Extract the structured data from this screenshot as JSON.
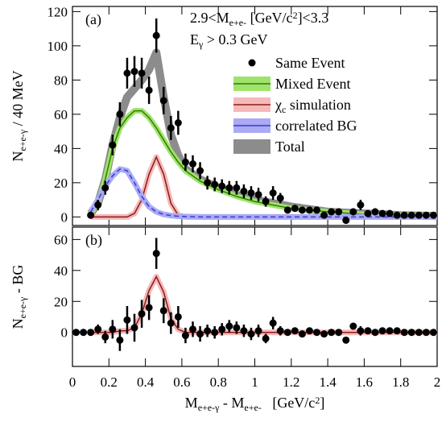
{
  "chart_data": [
    {
      "type": "errorbar",
      "panel_label": "(a)",
      "annotations": [
        [
          {
            "text": "2.9<M"
          },
          {
            "text": "e+e-",
            "shift": "sub"
          },
          {
            "text": " [GeV/c"
          },
          {
            "text": "2",
            "shift": "super"
          },
          {
            "text": "]<3.3"
          }
        ],
        [
          {
            "text": "E"
          },
          {
            "text": "γ",
            "shift": "sub"
          },
          {
            "text": " > 0.3 GeV"
          }
        ]
      ],
      "y_label": [
        {
          "text": "N"
        },
        {
          "text": "e+e-γ",
          "shift": "sub"
        },
        {
          "text": " / 40 MeV"
        }
      ],
      "xlim": [
        0,
        2
      ],
      "xticks": [
        0,
        0.2,
        0.4,
        0.6,
        0.8,
        1,
        1.2,
        1.4,
        1.6,
        1.8,
        2
      ],
      "ylim": [
        -5,
        123
      ],
      "yticks": [
        0,
        20,
        40,
        60,
        80,
        100,
        120
      ],
      "series": [
        {
          "name": "Total",
          "kind": "band",
          "color": "#8c8c8c",
          "x": [
            0.1,
            0.14,
            0.18,
            0.22,
            0.26,
            0.3,
            0.34,
            0.38,
            0.42,
            0.46,
            0.5,
            0.54,
            0.58,
            0.62,
            0.7,
            0.8,
            0.9,
            1.0,
            1.2,
            1.4,
            1.6,
            1.8,
            2.0
          ],
          "values": [
            2,
            8,
            22,
            42,
            58,
            70,
            75,
            80,
            86,
            96,
            70,
            48,
            36,
            28,
            22,
            17,
            13,
            10,
            6,
            3,
            2,
            1,
            0.5
          ]
        },
        {
          "name": "Mixed Event",
          "kind": "band",
          "color": "#9fe36c",
          "line_color": "#2f7d00",
          "x": [
            0.1,
            0.14,
            0.18,
            0.22,
            0.26,
            0.3,
            0.34,
            0.38,
            0.42,
            0.46,
            0.5,
            0.54,
            0.58,
            0.62,
            0.7,
            0.8,
            0.9,
            1.0,
            1.2,
            1.4,
            1.6,
            1.8,
            2.0
          ],
          "values": [
            2,
            8,
            22,
            40,
            52,
            58,
            62,
            62,
            58,
            52,
            45,
            38,
            32,
            27,
            21,
            16,
            12,
            9,
            5,
            3,
            1.5,
            1,
            0.5
          ]
        },
        {
          "name": [
            {
              "text": "χ"
            },
            {
              "text": "c",
              "shift": "sub"
            },
            {
              "text": " simulation"
            }
          ],
          "kind": "band",
          "color": "#f5b9b9",
          "line_color": "#8b1a1a",
          "x": [
            0.1,
            0.14,
            0.18,
            0.22,
            0.26,
            0.3,
            0.34,
            0.38,
            0.42,
            0.46,
            0.5,
            0.54,
            0.58,
            0.62,
            0.7,
            0.8,
            0.9,
            1.0,
            1.2,
            1.4,
            1.6,
            1.8,
            2.0
          ],
          "values": [
            0,
            0,
            0,
            0,
            0,
            0,
            2,
            10,
            25,
            35,
            25,
            8,
            1,
            0,
            0,
            0,
            0,
            0,
            0,
            0,
            0,
            0,
            0
          ]
        },
        {
          "name": "correlated BG",
          "kind": "band",
          "color": "#aaaaf5",
          "line_color": "#3a3acc",
          "dashed": true,
          "x": [
            0.1,
            0.14,
            0.18,
            0.22,
            0.26,
            0.3,
            0.34,
            0.38,
            0.42,
            0.46,
            0.5,
            0.54,
            0.58,
            0.62,
            0.7,
            0.8,
            0.9,
            1.0,
            1.2,
            1.4,
            1.6,
            1.8,
            2.0
          ],
          "values": [
            3,
            10,
            18,
            24,
            28,
            27,
            20,
            12,
            6,
            3,
            1.5,
            0.8,
            0.4,
            0.2,
            0,
            0,
            0,
            0,
            0,
            0,
            0,
            0,
            0
          ]
        },
        {
          "name": "Same Event",
          "kind": "points",
          "color": "#000000",
          "x": [
            0.1,
            0.14,
            0.18,
            0.22,
            0.26,
            0.3,
            0.34,
            0.38,
            0.42,
            0.46,
            0.5,
            0.54,
            0.58,
            0.62,
            0.66,
            0.7,
            0.74,
            0.78,
            0.82,
            0.86,
            0.9,
            0.94,
            0.98,
            1.02,
            1.06,
            1.1,
            1.14,
            1.18,
            1.22,
            1.26,
            1.3,
            1.34,
            1.38,
            1.42,
            1.46,
            1.5,
            1.54,
            1.58,
            1.62,
            1.66,
            1.7,
            1.74,
            1.78,
            1.82,
            1.86,
            1.9,
            1.94,
            1.98
          ],
          "values": [
            1,
            7,
            17,
            42,
            60,
            84,
            85,
            84,
            74,
            106,
            68,
            52,
            55,
            32,
            31,
            27,
            20,
            19,
            18,
            17,
            17,
            15,
            14,
            13,
            9,
            14,
            11,
            4,
            5,
            4,
            4,
            4,
            1,
            3,
            3,
            -2,
            3,
            7,
            2,
            3,
            2,
            2,
            1,
            1,
            1,
            1,
            1,
            1
          ],
          "errors": [
            2,
            3,
            4,
            6,
            7,
            9,
            9,
            9,
            8,
            10,
            8,
            7,
            7,
            5,
            5,
            5,
            4,
            4,
            4,
            4,
            4,
            4,
            4,
            4,
            3,
            4,
            3,
            2,
            2,
            2,
            2,
            2,
            2,
            2,
            2,
            2,
            2,
            3,
            2,
            2,
            2,
            2,
            1,
            1,
            1,
            1,
            1,
            1
          ]
        }
      ]
    },
    {
      "type": "errorbar",
      "panel_label": "(b)",
      "y_label": [
        {
          "text": "N"
        },
        {
          "text": "e+e-γ",
          "shift": "sub"
        },
        {
          "text": " - BG"
        }
      ],
      "x_label": [
        {
          "text": "M"
        },
        {
          "text": "e+e-γ",
          "shift": "sub"
        },
        {
          "text": " - M"
        },
        {
          "text": "e+e-",
          "shift": "sub"
        },
        {
          "text": "   [GeV/c"
        },
        {
          "text": "2",
          "shift": "super"
        },
        {
          "text": "]"
        }
      ],
      "xlim": [
        0,
        2
      ],
      "xticks": [
        0,
        0.2,
        0.4,
        0.6,
        0.8,
        1,
        1.2,
        1.4,
        1.6,
        1.8,
        2
      ],
      "ylim": [
        -22,
        68
      ],
      "yticks": [
        0,
        20,
        40,
        60
      ],
      "series": [
        {
          "kind": "band",
          "color": "#f5b9b9",
          "line_color": "#8b1a1a",
          "x": [
            0.1,
            0.14,
            0.18,
            0.22,
            0.26,
            0.3,
            0.34,
            0.38,
            0.42,
            0.46,
            0.5,
            0.54,
            0.58,
            0.62,
            0.7,
            0.8,
            0.9,
            1.0,
            1.2,
            1.4,
            1.6,
            1.8,
            2.0
          ],
          "values": [
            0,
            0,
            0,
            0,
            1,
            1,
            3,
            12,
            27,
            36,
            26,
            9,
            2,
            0,
            0,
            0,
            0,
            0,
            0,
            0,
            0,
            0,
            0
          ]
        },
        {
          "kind": "points",
          "color": "#000000",
          "x": [
            0.02,
            0.06,
            0.1,
            0.14,
            0.18,
            0.22,
            0.26,
            0.3,
            0.34,
            0.38,
            0.42,
            0.46,
            0.5,
            0.54,
            0.58,
            0.62,
            0.66,
            0.7,
            0.74,
            0.78,
            0.82,
            0.86,
            0.9,
            0.94,
            0.98,
            1.02,
            1.06,
            1.1,
            1.14,
            1.18,
            1.22,
            1.26,
            1.3,
            1.34,
            1.38,
            1.42,
            1.46,
            1.5,
            1.54,
            1.58,
            1.62,
            1.66,
            1.7,
            1.74,
            1.78,
            1.82,
            1.86,
            1.9,
            1.94,
            1.98
          ],
          "values": [
            0,
            0,
            0,
            2,
            -3,
            2,
            -5,
            8,
            3,
            12,
            16,
            51,
            14,
            6,
            10,
            -2,
            2,
            -1,
            1,
            0,
            2,
            4,
            3,
            1,
            -1,
            1,
            -4,
            6,
            1,
            0,
            1,
            -1,
            1,
            0,
            -1,
            0,
            0,
            -5,
            4,
            1,
            1,
            0,
            1,
            1,
            1,
            0,
            0,
            0,
            0,
            0
          ],
          "errors": [
            1,
            1,
            2,
            3,
            4,
            6,
            7,
            9,
            9,
            9,
            8,
            10,
            8,
            7,
            7,
            5,
            5,
            5,
            4,
            4,
            4,
            4,
            4,
            4,
            4,
            4,
            3,
            4,
            3,
            2,
            2,
            2,
            2,
            2,
            2,
            2,
            2,
            2,
            2,
            3,
            2,
            2,
            2,
            2,
            1,
            1,
            1,
            1,
            1,
            1
          ]
        }
      ]
    }
  ]
}
